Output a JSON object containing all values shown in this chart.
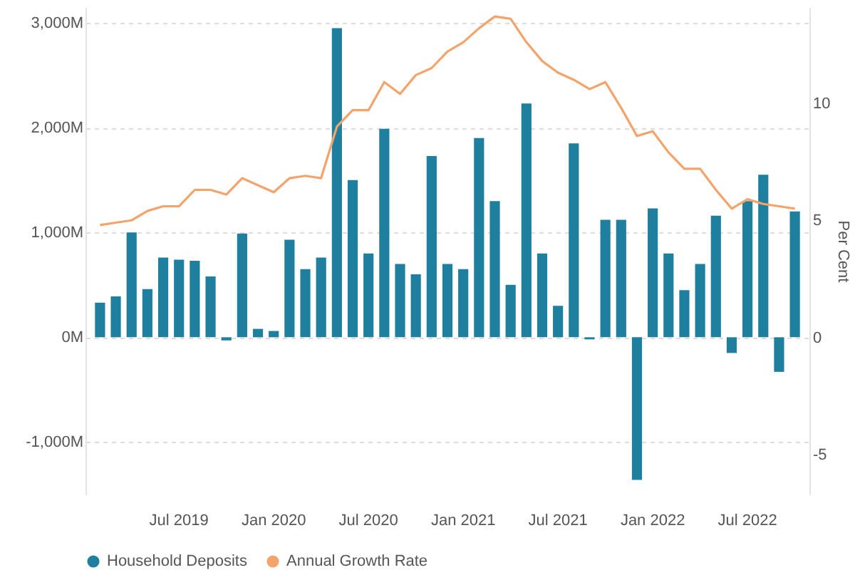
{
  "chart_data": {
    "type": "bar",
    "y2label": "Per Cent",
    "legend": "bottom",
    "grid": "y",
    "categories": [
      null,
      null,
      null,
      null,
      null,
      "Jul 2019",
      null,
      null,
      null,
      null,
      null,
      "Jan 2020",
      null,
      null,
      null,
      null,
      null,
      "Jul 2020",
      null,
      null,
      null,
      null,
      null,
      "Jan 2021",
      null,
      null,
      null,
      null,
      null,
      "Jul 2021",
      null,
      null,
      null,
      null,
      null,
      "Jan 2022",
      null,
      null,
      null,
      null,
      null,
      "Jul 2022",
      null,
      null,
      null
    ],
    "ylim": [
      -1500,
      3150
    ],
    "yticks": [
      {
        "value": -1000,
        "label": "-1,000M"
      },
      {
        "value": 0,
        "label": "0M"
      },
      {
        "value": 1000,
        "label": "1,000M"
      },
      {
        "value": 2000,
        "label": "2,000M"
      },
      {
        "value": 3000,
        "label": "3,000M"
      }
    ],
    "y2lim": [
      -6.7,
      14.1
    ],
    "y2ticks": [
      -5,
      0,
      5,
      10
    ],
    "series": [
      {
        "name": "Household Deposits",
        "color": "#1f7f9e",
        "values": [
          330,
          390,
          1000,
          460,
          760,
          740,
          730,
          580,
          -30,
          990,
          80,
          60,
          930,
          650,
          760,
          2950,
          1500,
          800,
          1990,
          700,
          600,
          1730,
          700,
          650,
          1900,
          1300,
          500,
          2230,
          800,
          300,
          1850,
          -20,
          1120,
          1120,
          -1360,
          1230,
          800,
          450,
          700,
          1160,
          -150,
          1300,
          1550,
          -330,
          1200
        ]
      },
      {
        "name": "Annual Growth Rate",
        "type": "line",
        "axis": "y2",
        "color": "#f4a46a",
        "values": [
          4.8,
          4.9,
          5.0,
          5.4,
          5.6,
          5.6,
          6.3,
          6.3,
          6.1,
          6.8,
          6.5,
          6.2,
          6.8,
          6.9,
          6.8,
          9.0,
          9.7,
          9.7,
          10.9,
          10.4,
          11.2,
          11.5,
          12.2,
          12.6,
          13.2,
          13.7,
          13.6,
          12.6,
          11.8,
          11.3,
          11.0,
          10.6,
          10.9,
          9.8,
          8.6,
          8.8,
          7.9,
          7.2,
          7.2,
          6.3,
          5.5,
          5.9,
          5.7,
          5.6,
          5.5
        ]
      }
    ]
  }
}
